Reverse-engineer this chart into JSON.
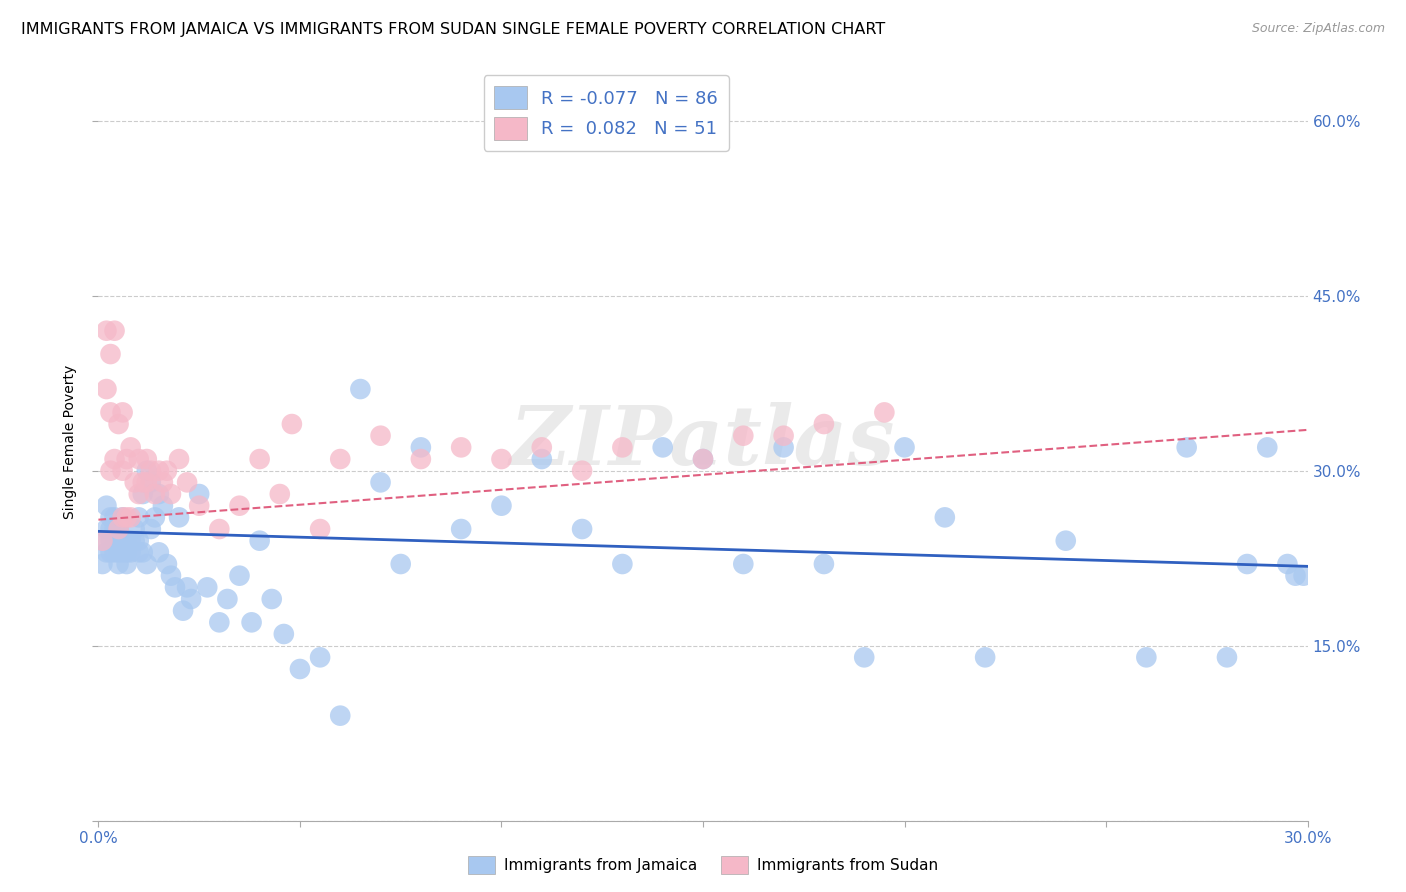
{
  "title": "IMMIGRANTS FROM JAMAICA VS IMMIGRANTS FROM SUDAN SINGLE FEMALE POVERTY CORRELATION CHART",
  "source": "Source: ZipAtlas.com",
  "ylabel": "Single Female Poverty",
  "watermark": "ZIPatlas",
  "xlim": [
    0.0,
    0.3
  ],
  "ylim": [
    0.0,
    0.65
  ],
  "yticks": [
    0.0,
    0.15,
    0.3,
    0.45,
    0.6
  ],
  "ytick_labels": [
    "",
    "15.0%",
    "30.0%",
    "45.0%",
    "60.0%"
  ],
  "xticks": [
    0.0,
    0.05,
    0.1,
    0.15,
    0.2,
    0.25,
    0.3
  ],
  "xtick_labels": [
    "0.0%",
    "",
    "",
    "",
    "",
    "",
    "30.0%"
  ],
  "color_jamaica": "#a8c8f0",
  "color_sudan": "#f5b8c8",
  "line_color_jamaica": "#3060c0",
  "line_color_sudan": "#e06080",
  "axis_color": "#4472c4",
  "grid_color": "#cccccc",
  "title_fontsize": 11.5,
  "label_fontsize": 10,
  "tick_fontsize": 11,
  "R_jamaica": -0.077,
  "N_jamaica": 86,
  "R_sudan": 0.082,
  "N_sudan": 51,
  "jamaica_x": [
    0.001,
    0.001,
    0.002,
    0.002,
    0.002,
    0.003,
    0.003,
    0.003,
    0.003,
    0.004,
    0.004,
    0.004,
    0.004,
    0.005,
    0.005,
    0.005,
    0.005,
    0.006,
    0.006,
    0.006,
    0.007,
    0.007,
    0.007,
    0.008,
    0.008,
    0.009,
    0.009,
    0.01,
    0.01,
    0.01,
    0.011,
    0.011,
    0.012,
    0.012,
    0.013,
    0.013,
    0.014,
    0.015,
    0.015,
    0.016,
    0.017,
    0.018,
    0.019,
    0.02,
    0.021,
    0.022,
    0.023,
    0.025,
    0.027,
    0.03,
    0.032,
    0.035,
    0.038,
    0.04,
    0.043,
    0.046,
    0.05,
    0.055,
    0.06,
    0.065,
    0.07,
    0.075,
    0.08,
    0.09,
    0.1,
    0.11,
    0.12,
    0.13,
    0.14,
    0.15,
    0.16,
    0.17,
    0.18,
    0.19,
    0.2,
    0.21,
    0.22,
    0.24,
    0.26,
    0.27,
    0.28,
    0.285,
    0.29,
    0.295,
    0.297,
    0.299
  ],
  "jamaica_y": [
    0.24,
    0.22,
    0.25,
    0.23,
    0.27,
    0.24,
    0.23,
    0.26,
    0.25,
    0.24,
    0.23,
    0.26,
    0.25,
    0.24,
    0.23,
    0.22,
    0.25,
    0.24,
    0.23,
    0.26,
    0.24,
    0.23,
    0.22,
    0.24,
    0.23,
    0.24,
    0.25,
    0.24,
    0.23,
    0.26,
    0.23,
    0.28,
    0.22,
    0.3,
    0.29,
    0.25,
    0.26,
    0.23,
    0.28,
    0.27,
    0.22,
    0.21,
    0.2,
    0.26,
    0.18,
    0.2,
    0.19,
    0.28,
    0.2,
    0.17,
    0.19,
    0.21,
    0.17,
    0.24,
    0.19,
    0.16,
    0.13,
    0.14,
    0.09,
    0.37,
    0.29,
    0.22,
    0.32,
    0.25,
    0.27,
    0.31,
    0.25,
    0.22,
    0.32,
    0.31,
    0.22,
    0.32,
    0.22,
    0.14,
    0.32,
    0.26,
    0.14,
    0.24,
    0.14,
    0.32,
    0.14,
    0.22,
    0.32,
    0.22,
    0.21,
    0.21
  ],
  "sudan_x": [
    0.001,
    0.002,
    0.002,
    0.003,
    0.003,
    0.003,
    0.004,
    0.004,
    0.005,
    0.005,
    0.006,
    0.006,
    0.006,
    0.007,
    0.007,
    0.008,
    0.008,
    0.009,
    0.01,
    0.01,
    0.011,
    0.012,
    0.012,
    0.013,
    0.014,
    0.015,
    0.016,
    0.017,
    0.018,
    0.02,
    0.022,
    0.025,
    0.03,
    0.035,
    0.04,
    0.045,
    0.048,
    0.055,
    0.06,
    0.07,
    0.08,
    0.09,
    0.1,
    0.11,
    0.12,
    0.13,
    0.15,
    0.16,
    0.17,
    0.18,
    0.195
  ],
  "sudan_y": [
    0.24,
    0.42,
    0.37,
    0.4,
    0.35,
    0.3,
    0.42,
    0.31,
    0.25,
    0.34,
    0.26,
    0.3,
    0.35,
    0.26,
    0.31,
    0.26,
    0.32,
    0.29,
    0.28,
    0.31,
    0.29,
    0.29,
    0.31,
    0.3,
    0.28,
    0.3,
    0.29,
    0.3,
    0.28,
    0.31,
    0.29,
    0.27,
    0.25,
    0.27,
    0.31,
    0.28,
    0.34,
    0.25,
    0.31,
    0.33,
    0.31,
    0.32,
    0.31,
    0.32,
    0.3,
    0.32,
    0.31,
    0.33,
    0.33,
    0.34,
    0.35
  ],
  "trend_jamaica_x0": 0.0,
  "trend_jamaica_y0": 0.248,
  "trend_jamaica_x1": 0.3,
  "trend_jamaica_y1": 0.218,
  "trend_sudan_x0": 0.0,
  "trend_sudan_y0": 0.258,
  "trend_sudan_x1": 0.3,
  "trend_sudan_y1": 0.335
}
